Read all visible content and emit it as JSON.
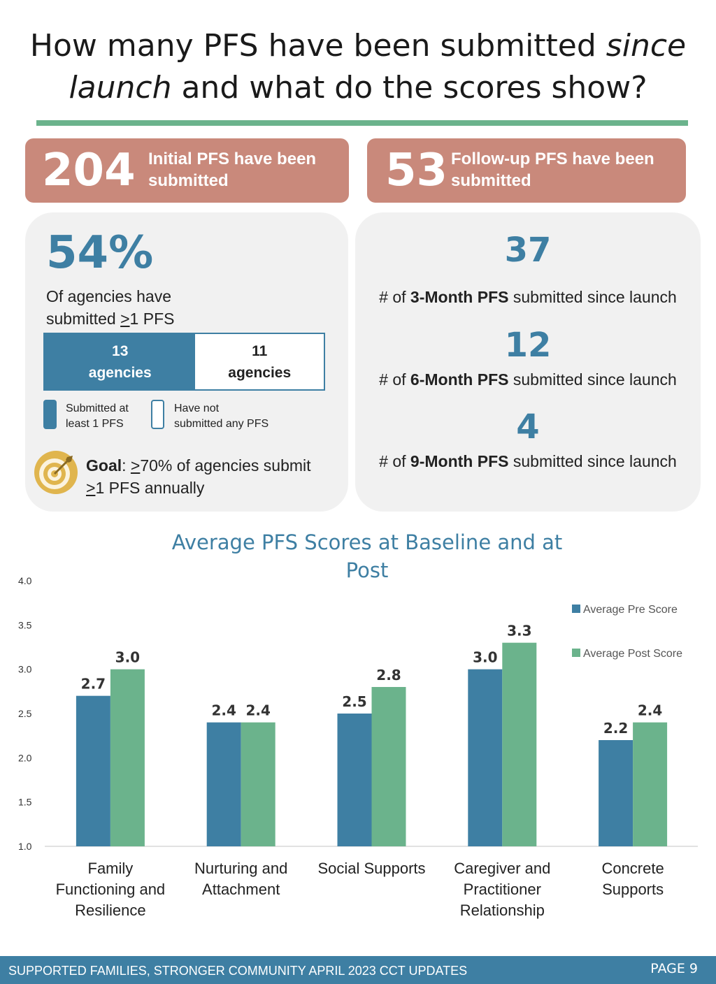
{
  "header": {
    "title_part1": "How many PFS have been submitted ",
    "title_italic1": "since",
    "title_italic2": "launch",
    "title_part2": " and what do the scores show?"
  },
  "cards": {
    "initial": {
      "number": "204",
      "label_line1": "Initial PFS have been",
      "label_line2": "submitted"
    },
    "followup": {
      "number": "53",
      "label_line1": "Follow-up PFS have been",
      "label_line2": "submitted"
    }
  },
  "agencies": {
    "percent": "54%",
    "desc_line1": "Of agencies have",
    "desc_line2_pre": "submitted ",
    "desc_line2_u": ">",
    "desc_line2_post": "1 PFS",
    "submitted_count": "13",
    "submitted_word": "agencies",
    "not_submitted_count": "11",
    "not_submitted_word": "agencies",
    "submitted_fraction": 0.54,
    "legend_submitted_line1": "Submitted at",
    "legend_submitted_line2": "least 1 PFS",
    "legend_not_line1": "Have not",
    "legend_not_line2": "submitted any PFS",
    "goal_label": "Goal",
    "goal_sep": ": ",
    "goal_u1": ">",
    "goal_text1": "70% of agencies submit",
    "goal_u2": ">",
    "goal_text2": "1 PFS annually"
  },
  "followup_stats": [
    {
      "value": "37",
      "pre": "# of ",
      "bold": "3-Month PFS",
      "post": " submitted since launch"
    },
    {
      "value": "12",
      "pre": "# of ",
      "bold": "6-Month PFS",
      "post": " submitted since launch"
    },
    {
      "value": "4",
      "pre": "# of ",
      "bold": "9-Month PFS",
      "post": " submitted since launch"
    }
  ],
  "chart_data": {
    "type": "bar",
    "title": "Average PFS Scores at Baseline and at Post",
    "categories": [
      "Family Functioning and Resilience",
      "Nurturing and Attachment",
      "Social Supports",
      "Caregiver and Practitioner Relationship",
      "Concrete Supports"
    ],
    "series": [
      {
        "name": "Average Pre Score",
        "values": [
          2.7,
          2.4,
          2.5,
          3.0,
          2.2
        ]
      },
      {
        "name": "Average Post Score",
        "values": [
          3.0,
          2.4,
          2.8,
          3.3,
          2.4
        ]
      }
    ],
    "ylim": [
      1.0,
      4.0
    ],
    "yticks": [
      "1.0",
      "1.5",
      "2.0",
      "2.5",
      "3.0",
      "3.5",
      "4.0"
    ],
    "legend_position": "top-right",
    "grid": false,
    "colors": {
      "pre": "#3e7fa3",
      "post": "#6bb38c"
    }
  },
  "category_lines": [
    [
      "Family",
      "Functioning and",
      "Resilience"
    ],
    [
      "Nurturing and",
      "Attachment"
    ],
    [
      "Social Supports"
    ],
    [
      "Caregiver and",
      "Practitioner",
      "Relationship"
    ],
    [
      "Concrete Supports"
    ]
  ],
  "footer": {
    "left": "SUPPORTED FAMILIES, STRONGER COMMUNITY APRIL 2023 CCT UPDATES",
    "right": "PAGE 9"
  },
  "icons": {
    "goal": "target-icon"
  }
}
